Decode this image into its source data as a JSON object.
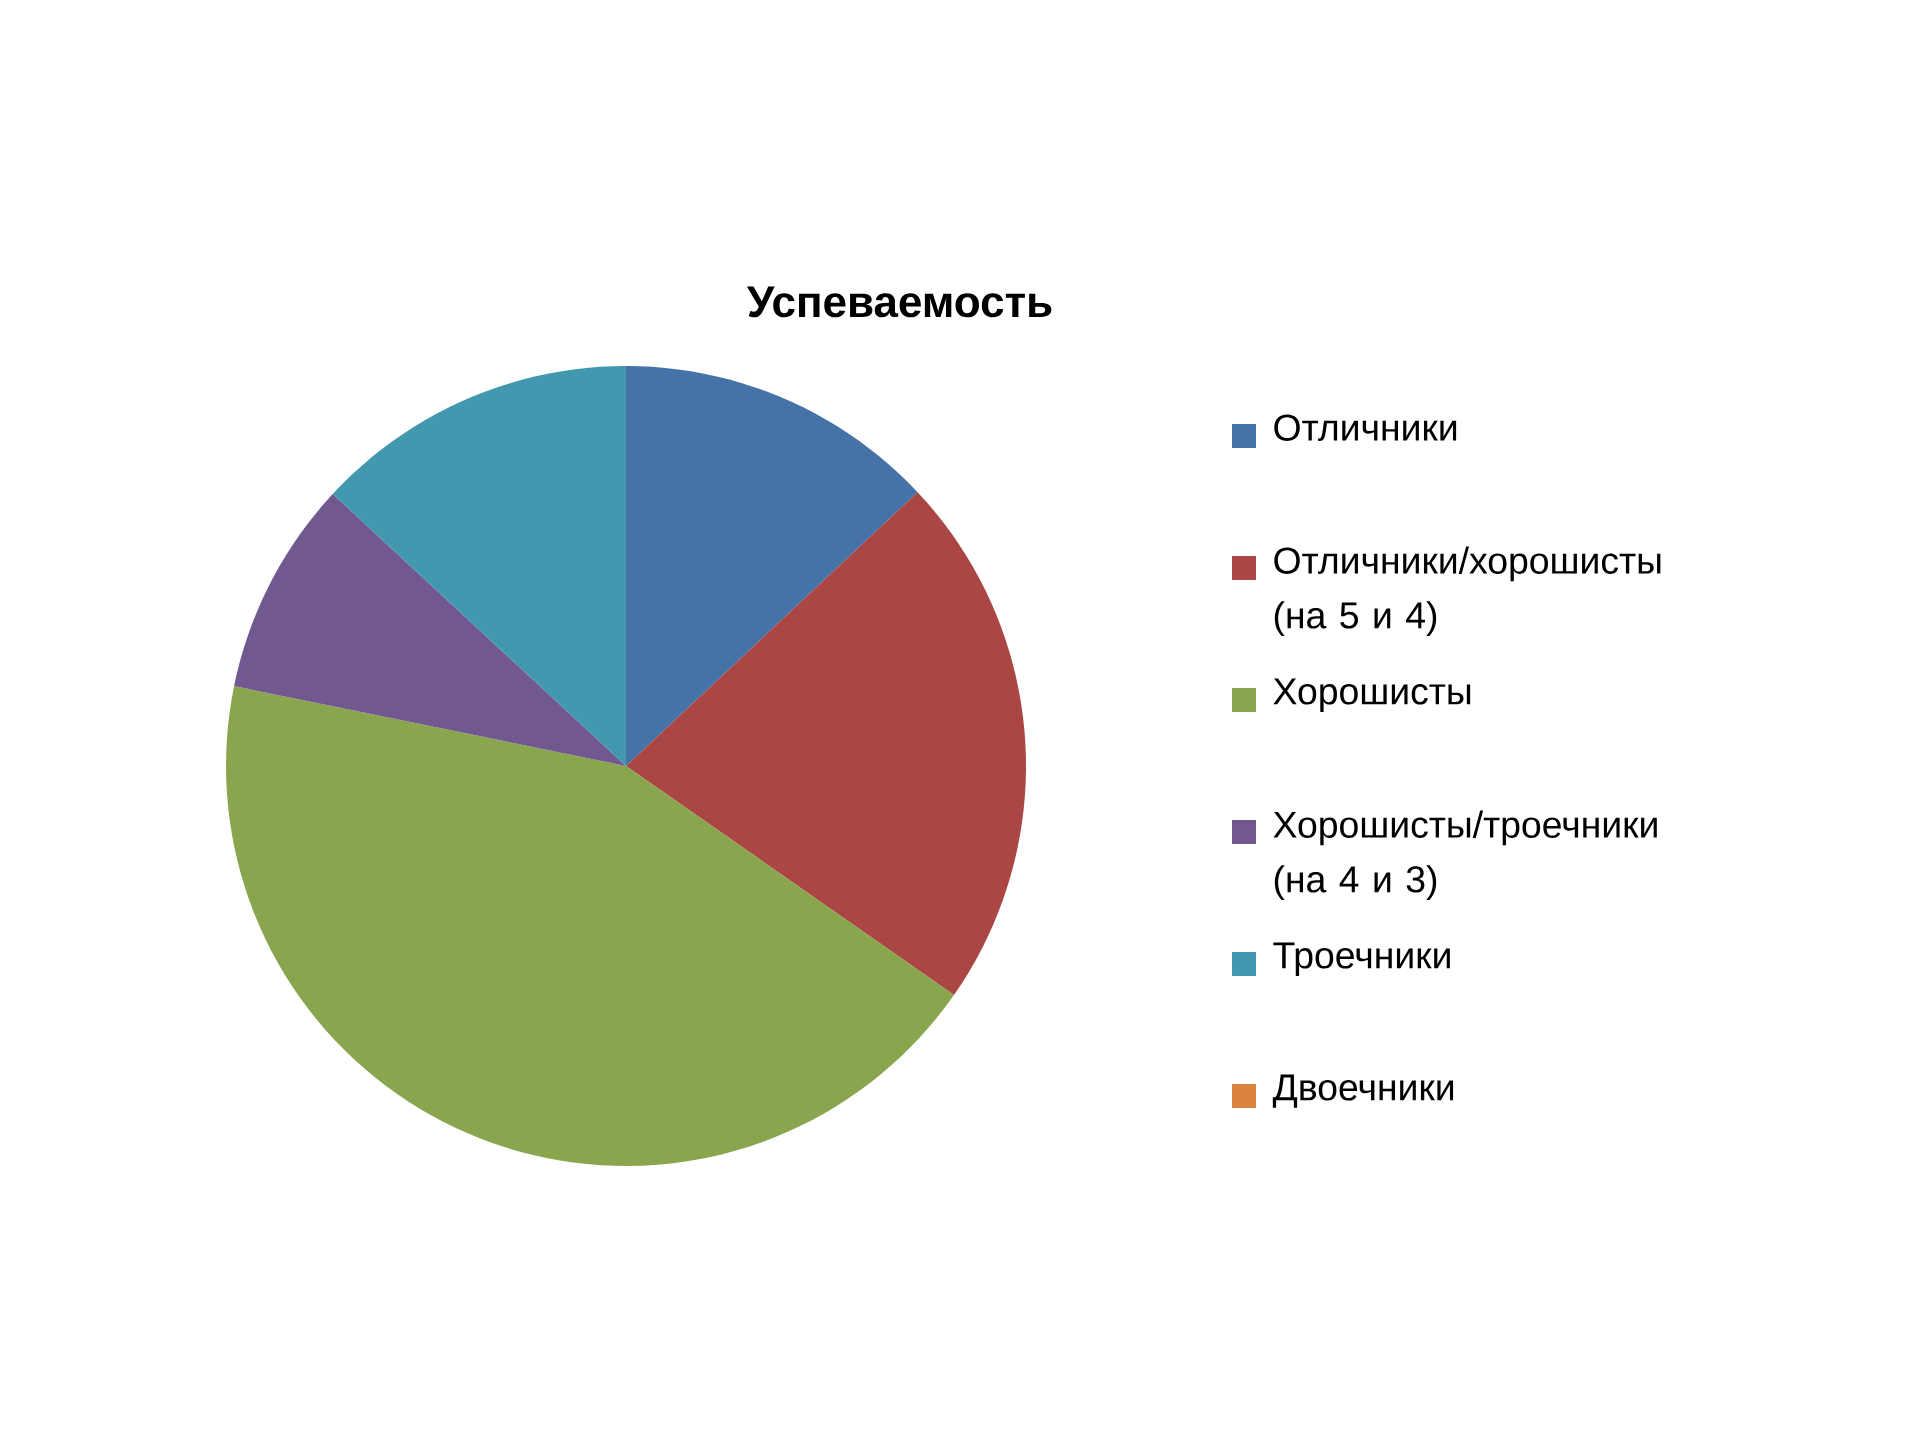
{
  "chart_data": {
    "type": "pie",
    "title": "Успеваемость",
    "categories": [
      "Отличники",
      "Отличники/хорошисты (на 5 и 4)",
      "Хорошисты",
      "Хорошисты/троечники (на 4 и 3)",
      "Троечники",
      "Двоечники"
    ],
    "values": [
      13,
      21.7,
      43.5,
      8.7,
      13.1,
      0
    ],
    "colors": [
      "#4572a7",
      "#aa4643",
      "#89a54e",
      "#71588f",
      "#4198af",
      "#db843d"
    ],
    "legend": "right"
  }
}
